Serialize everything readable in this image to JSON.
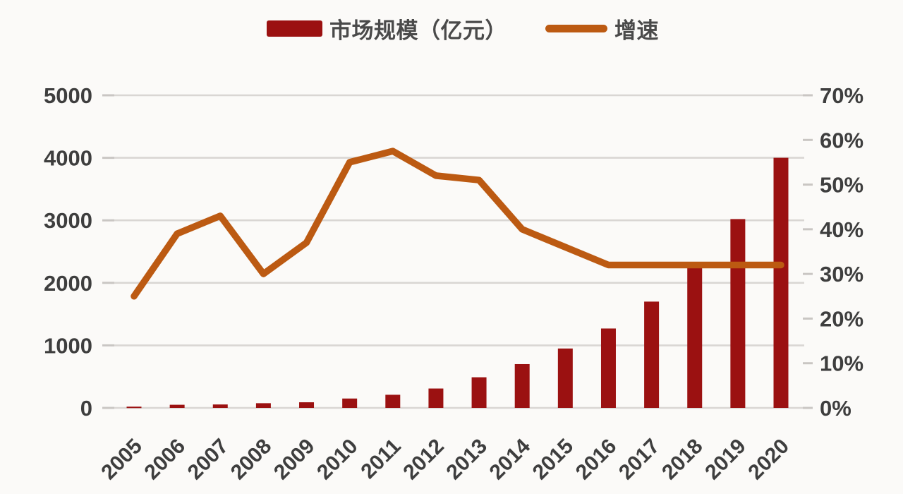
{
  "colors": {
    "background": "#fbfaf8",
    "bar": "#9b1111",
    "line": "#bc5a12",
    "grid": "#d9d6d3",
    "tick": "#c9c6c3",
    "tick_text": "#3e3e3e",
    "legend_text": "#4a4a4a"
  },
  "chart_data": {
    "type": "combo",
    "title": "",
    "categories": [
      "2005",
      "2006",
      "2007",
      "2008",
      "2009",
      "2010",
      "2011",
      "2012",
      "2013",
      "2014",
      "2015",
      "2016",
      "2017",
      "2018",
      "2019",
      "2020"
    ],
    "series": [
      {
        "name": "市场规模（亿元）",
        "type": "bar",
        "yaxis": "left",
        "color": "#9b1111",
        "values": [
          20,
          50,
          55,
          75,
          90,
          150,
          210,
          310,
          490,
          700,
          950,
          1270,
          1700,
          2270,
          3020,
          4000
        ]
      },
      {
        "name": "增速",
        "type": "line",
        "yaxis": "right",
        "unit": "%",
        "color": "#bc5a12",
        "values": [
          25,
          39,
          43,
          30,
          37,
          55,
          57.5,
          52,
          51,
          40,
          36,
          32,
          32,
          32,
          32,
          32
        ]
      }
    ],
    "left_axis": {
      "min": 0,
      "max": 5000,
      "tick_interval": 1000,
      "tick_labels": [
        "0",
        "1000",
        "2000",
        "3000",
        "4000",
        "5000"
      ]
    },
    "right_axis": {
      "min": 0,
      "max": 70,
      "tick_interval": 10,
      "tick_labels": [
        "0%",
        "10%",
        "20%",
        "30%",
        "40%",
        "50%",
        "60%",
        "70%"
      ]
    },
    "grid": true,
    "legend_position": "top",
    "x_label_rotation": -45
  }
}
